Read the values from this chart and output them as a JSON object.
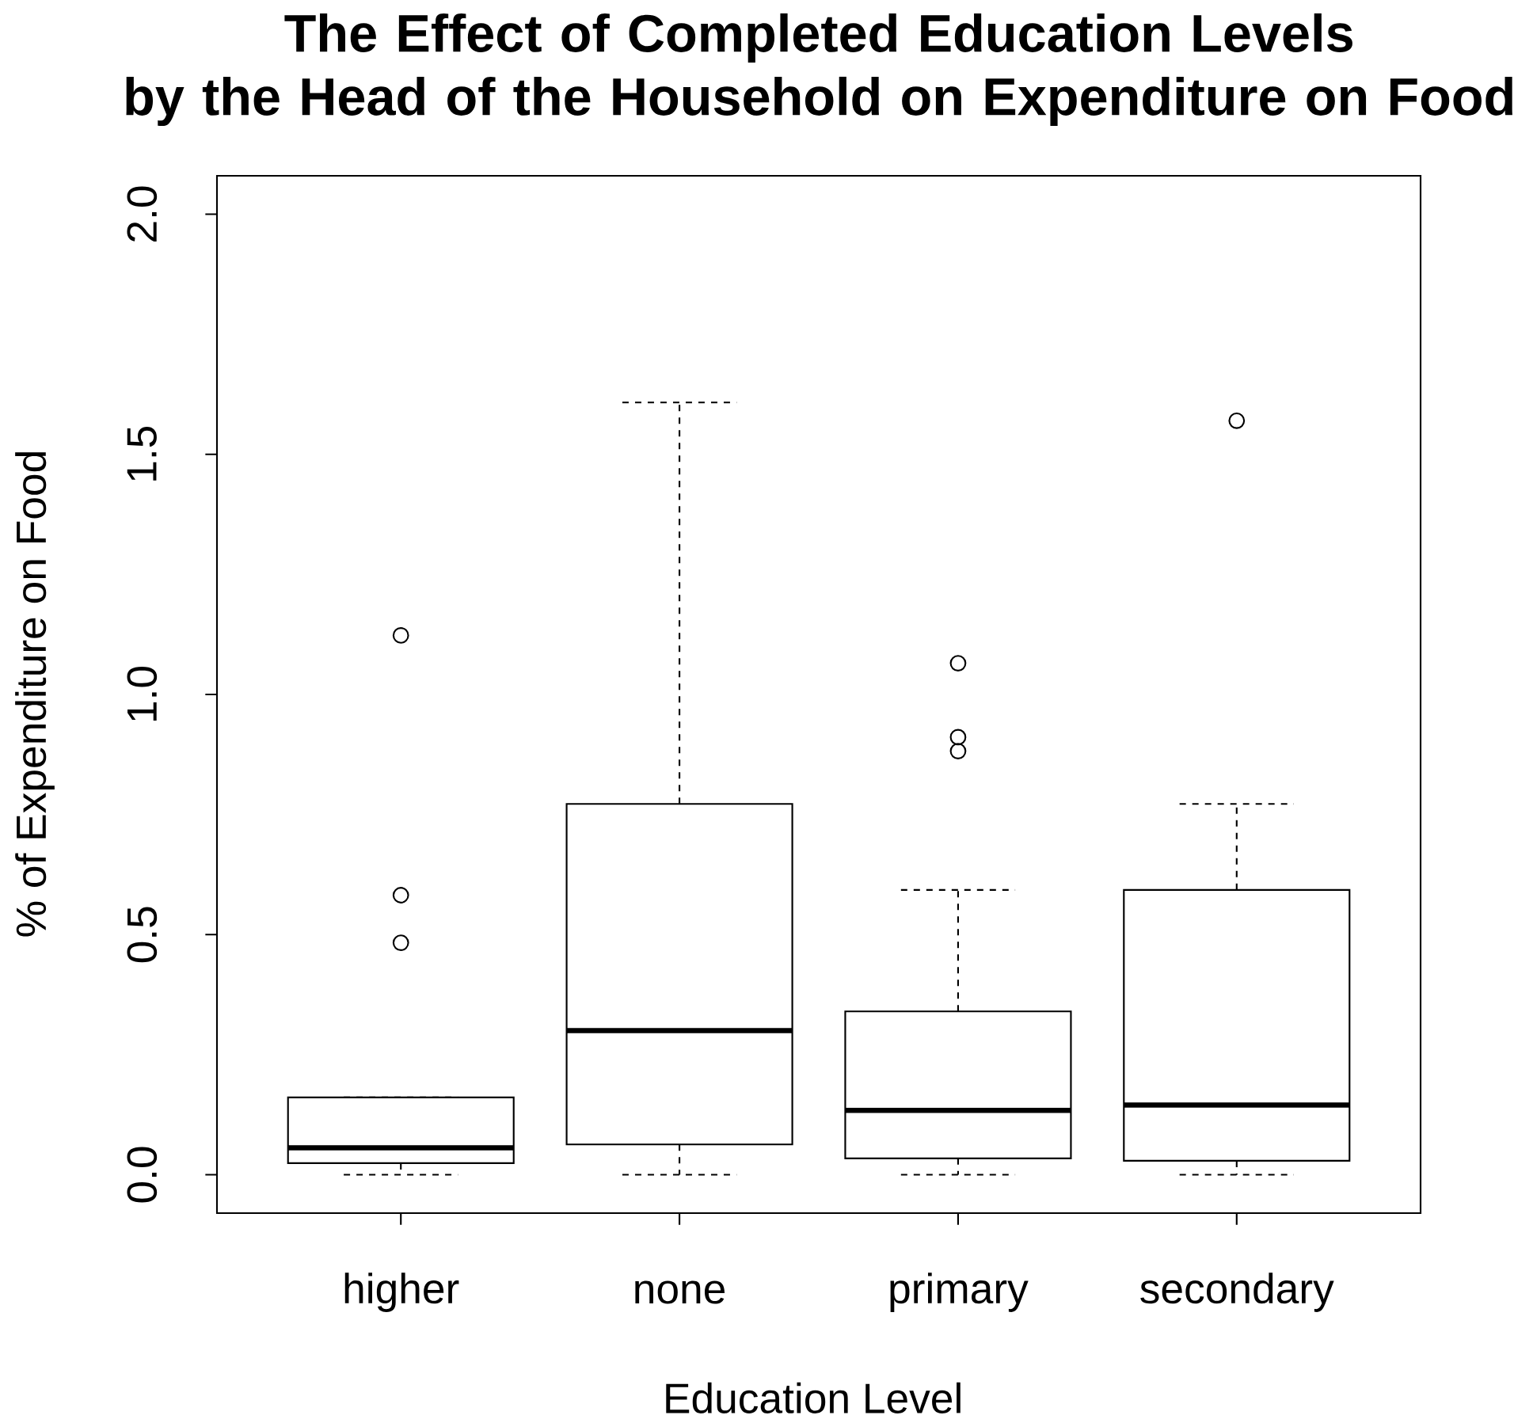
{
  "chart_data": {
    "type": "box",
    "title": "The Effect of Completed Education Levels by the Head of the Household on Expenditure on Food",
    "xlabel": "Education Level",
    "ylabel": "% of Expenditure on Food",
    "categories": [
      "higher",
      "none",
      "primary",
      "secondary"
    ],
    "boxes": [
      {
        "low": 0,
        "q1": 0.024,
        "median": 0.056,
        "q3": 0.161,
        "high": 0.161,
        "outliers": [
          1.123,
          0.582,
          0.483
        ]
      },
      {
        "low": 0,
        "q1": 0.063,
        "median": 0.3,
        "q3": 0.772,
        "high": 1.608
      },
      {
        "low": 0,
        "q1": 0.034,
        "median": 0.134,
        "q3": 0.34,
        "high": 0.593,
        "outliers": [
          1.065,
          0.911,
          0.882
        ]
      },
      {
        "low": 0,
        "q1": 0.029,
        "median": 0.145,
        "q3": 0.593,
        "high": 0.772,
        "outliers": [
          1.57
        ]
      }
    ],
    "color": "#000000",
    "ylim": [
      -0.08,
      2.08
    ],
    "yticks": [
      {
        "value": 0,
        "label": "0.0"
      },
      {
        "value": 0.5,
        "label": "0.5"
      },
      {
        "value": 1,
        "label": "1.0"
      },
      {
        "value": 1.5,
        "label": "1.5"
      },
      {
        "value": 2,
        "label": "2.0"
      }
    ],
    "grid": false,
    "line_style": "dashed"
  }
}
